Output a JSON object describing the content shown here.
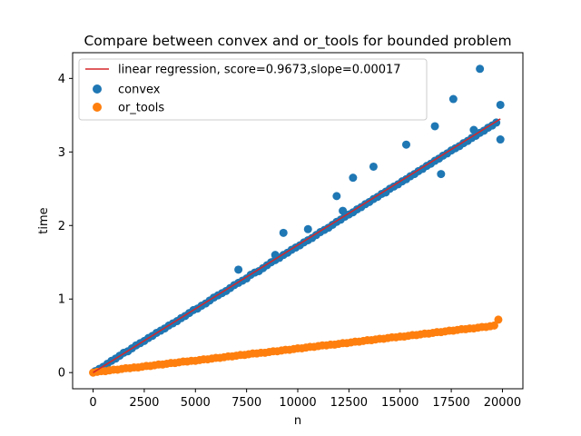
{
  "chart_data": {
    "type": "scatter",
    "title": "Compare between convex and or_tools for bounded problem",
    "xlabel": "n",
    "ylabel": "time",
    "xlim": [
      -1000,
      21000
    ],
    "ylim": [
      -0.22,
      4.35
    ],
    "x_ticks": [
      0,
      2500,
      5000,
      7500,
      10000,
      12500,
      15000,
      17500,
      20000
    ],
    "y_ticks": [
      0,
      1,
      2,
      3,
      4
    ],
    "grid": false,
    "legend_position": "upper-left",
    "regression_line": {
      "label": "linear regression, score=0.9673,slope=0.00017",
      "color": "#d62728",
      "x": [
        0,
        19900
      ],
      "y": [
        0.0,
        3.45
      ]
    },
    "series": [
      {
        "name": "convex",
        "color": "#1f77b4",
        "x": [
          100,
          300,
          500,
          700,
          900,
          1100,
          1300,
          1500,
          1700,
          1900,
          2100,
          2300,
          2500,
          2700,
          2900,
          3100,
          3300,
          3500,
          3700,
          3900,
          4100,
          4300,
          4500,
          4700,
          4900,
          5100,
          5300,
          5500,
          5700,
          5900,
          6100,
          6300,
          6500,
          6700,
          6900,
          7100,
          7300,
          7500,
          7700,
          7900,
          8100,
          8300,
          8500,
          8700,
          8900,
          9100,
          9300,
          9500,
          9700,
          9900,
          10100,
          10300,
          10500,
          10700,
          10900,
          11100,
          11300,
          11500,
          11700,
          11900,
          12100,
          12300,
          12500,
          12700,
          12900,
          13100,
          13300,
          13500,
          13700,
          13900,
          14100,
          14300,
          14500,
          14700,
          14900,
          15100,
          15300,
          15500,
          15700,
          15900,
          16100,
          16300,
          16500,
          16700,
          16900,
          17100,
          17300,
          17500,
          17700,
          17900,
          18100,
          18300,
          18500,
          18700,
          18900,
          19100,
          19300,
          19500,
          19700,
          19900,
          18900,
          17600,
          19900,
          12700,
          13700,
          11900,
          8900,
          7100,
          10500,
          16700,
          15300,
          18600,
          17000,
          9300,
          12200,
          14300
        ],
        "y": [
          0.02,
          0.05,
          0.08,
          0.12,
          0.16,
          0.19,
          0.23,
          0.27,
          0.29,
          0.33,
          0.37,
          0.4,
          0.43,
          0.47,
          0.5,
          0.54,
          0.57,
          0.6,
          0.64,
          0.67,
          0.7,
          0.74,
          0.77,
          0.81,
          0.85,
          0.87,
          0.91,
          0.94,
          0.98,
          1.02,
          1.05,
          1.08,
          1.11,
          1.15,
          1.19,
          1.22,
          1.25,
          1.28,
          1.33,
          1.36,
          1.38,
          1.42,
          1.46,
          1.5,
          1.53,
          1.56,
          1.6,
          1.63,
          1.67,
          1.7,
          1.73,
          1.77,
          1.8,
          1.83,
          1.87,
          1.91,
          1.94,
          1.97,
          2.01,
          2.05,
          2.08,
          2.12,
          2.15,
          2.18,
          2.22,
          2.25,
          2.29,
          2.32,
          2.36,
          2.39,
          2.43,
          2.46,
          2.5,
          2.53,
          2.56,
          2.6,
          2.63,
          2.67,
          2.7,
          2.74,
          2.77,
          2.81,
          2.84,
          2.88,
          2.91,
          2.95,
          2.98,
          3.02,
          3.05,
          3.08,
          3.12,
          3.15,
          3.19,
          3.22,
          3.26,
          3.29,
          3.33,
          3.36,
          3.4,
          3.64,
          4.13,
          3.72,
          3.17,
          2.65,
          2.8,
          2.4,
          1.6,
          1.4,
          1.95,
          3.35,
          3.1,
          3.3,
          2.7,
          1.9,
          2.2,
          2.45
        ]
      },
      {
        "name": "or_tools",
        "color": "#ff7f0e",
        "x": [
          0,
          200,
          400,
          600,
          800,
          1000,
          1200,
          1400,
          1600,
          1800,
          2000,
          2200,
          2400,
          2600,
          2800,
          3000,
          3200,
          3400,
          3600,
          3800,
          4000,
          4200,
          4400,
          4600,
          4800,
          5000,
          5200,
          5400,
          5600,
          5800,
          6000,
          6200,
          6400,
          6600,
          6800,
          7000,
          7200,
          7400,
          7600,
          7800,
          8000,
          8200,
          8400,
          8600,
          8800,
          9000,
          9200,
          9400,
          9600,
          9800,
          10000,
          10200,
          10400,
          10600,
          10800,
          11000,
          11200,
          11400,
          11600,
          11800,
          12000,
          12200,
          12400,
          12600,
          12800,
          13000,
          13200,
          13400,
          13600,
          13800,
          14000,
          14200,
          14400,
          14600,
          14800,
          15000,
          15200,
          15400,
          15600,
          15800,
          16000,
          16200,
          16400,
          16600,
          16800,
          17000,
          17200,
          17400,
          17600,
          17800,
          18000,
          18200,
          18400,
          18600,
          18800,
          19000,
          19200,
          19400,
          19600,
          19800
        ],
        "y": [
          0.0,
          0.01,
          0.02,
          0.02,
          0.03,
          0.04,
          0.04,
          0.05,
          0.06,
          0.06,
          0.07,
          0.07,
          0.08,
          0.09,
          0.09,
          0.1,
          0.11,
          0.11,
          0.12,
          0.13,
          0.13,
          0.14,
          0.15,
          0.15,
          0.16,
          0.16,
          0.17,
          0.18,
          0.18,
          0.19,
          0.2,
          0.2,
          0.21,
          0.22,
          0.22,
          0.23,
          0.24,
          0.24,
          0.25,
          0.26,
          0.26,
          0.27,
          0.27,
          0.28,
          0.29,
          0.29,
          0.3,
          0.31,
          0.31,
          0.32,
          0.33,
          0.33,
          0.34,
          0.35,
          0.35,
          0.36,
          0.37,
          0.37,
          0.38,
          0.38,
          0.39,
          0.4,
          0.4,
          0.41,
          0.42,
          0.42,
          0.43,
          0.44,
          0.44,
          0.45,
          0.46,
          0.46,
          0.47,
          0.48,
          0.48,
          0.49,
          0.49,
          0.5,
          0.51,
          0.51,
          0.52,
          0.53,
          0.53,
          0.54,
          0.55,
          0.55,
          0.56,
          0.57,
          0.57,
          0.58,
          0.59,
          0.59,
          0.6,
          0.6,
          0.61,
          0.62,
          0.62,
          0.63,
          0.64,
          0.72
        ]
      }
    ]
  }
}
